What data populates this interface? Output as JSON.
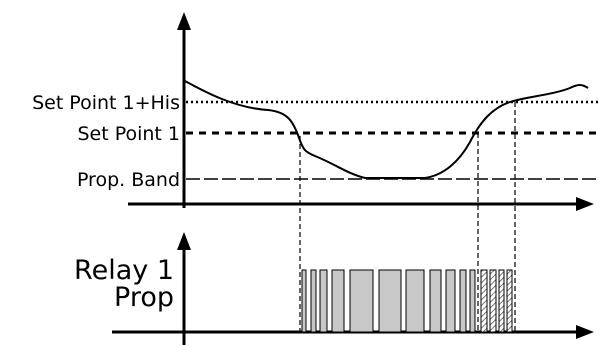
{
  "levels": {
    "setpoint_his": "Set Point 1+His",
    "setpoint": "Set Point 1",
    "prop_band": "Prop. Band"
  },
  "relay": {
    "line1": "Relay 1",
    "line2": "Prop"
  },
  "colors": {
    "line": "#000000",
    "pulse_fill": "#c8c8c8",
    "hatch": "#555555"
  }
}
